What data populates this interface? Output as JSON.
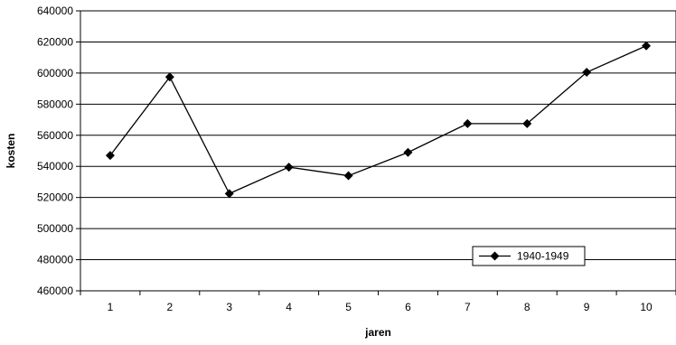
{
  "chart_data": {
    "type": "line",
    "title": "",
    "xlabel": "jaren",
    "ylabel": "kosten",
    "categories": [
      "1",
      "2",
      "3",
      "4",
      "5",
      "6",
      "7",
      "8",
      "9",
      "10"
    ],
    "series": [
      {
        "name": "1940-1949",
        "values": [
          547000,
          597500,
          522500,
          539500,
          534000,
          549000,
          567500,
          567500,
          600500,
          617500
        ],
        "color": "#000000",
        "marker": "diamond"
      }
    ],
    "ylim": [
      460000,
      640000
    ],
    "yticks": [
      460000,
      480000,
      500000,
      520000,
      540000,
      560000,
      580000,
      600000,
      620000,
      640000
    ],
    "grid": true,
    "legend_position": "lower-right"
  }
}
